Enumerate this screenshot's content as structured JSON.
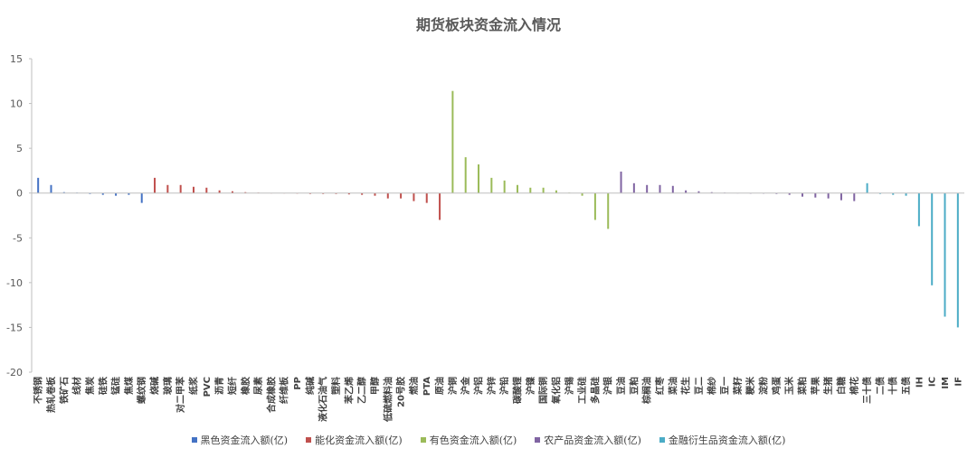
{
  "chart_data": {
    "type": "bar",
    "title": "期货板块资金流入情况",
    "ylim": [
      -20,
      15
    ],
    "yticks": [
      15,
      10,
      5,
      0,
      -5,
      -10,
      -15,
      -20
    ],
    "legend_position": "bottom",
    "series": [
      {
        "name": "黑色资金流入额(亿)",
        "color": "#4472C4",
        "categories": [
          "不锈钢",
          "热轧卷板",
          "铁矿石",
          "线材",
          "焦炭",
          "硅铁",
          "锰硅",
          "焦煤",
          "螺纹钢"
        ],
        "values": [
          1.7,
          0.9,
          0.1,
          0.05,
          -0.1,
          -0.2,
          -0.3,
          -0.2,
          -1.1
        ]
      },
      {
        "name": "能化资金流入额(亿)",
        "color": "#C0504D",
        "categories": [
          "烧碱",
          "玻璃",
          "对二甲苯",
          "纸浆",
          "PVC",
          "沥青",
          "短纤",
          "橡胶",
          "尿素",
          "合成橡胶",
          "纤维板",
          "PP",
          "纯碱",
          "液化石油气",
          "塑料",
          "苯乙烯",
          "乙二醇",
          "甲醇",
          "低硫燃料油",
          "20号胶",
          "燃油",
          "PTA",
          "原油"
        ],
        "values": [
          1.7,
          0.9,
          0.9,
          0.7,
          0.6,
          0.3,
          0.2,
          0.1,
          0.05,
          0.02,
          0.02,
          -0.05,
          -0.1,
          -0.1,
          -0.1,
          -0.15,
          -0.2,
          -0.3,
          -0.6,
          -0.6,
          -0.9,
          -1.1,
          -3.0
        ]
      },
      {
        "name": "有色资金流入额(亿)",
        "color": "#9BBB59",
        "categories": [
          "沪铜",
          "沪金",
          "沪铝",
          "沪锌",
          "沪铅",
          "碳酸锂",
          "沪镍",
          "国际铜",
          "氧化铝",
          "沪锡",
          "工业硅",
          "多晶硅",
          "沪银"
        ],
        "values": [
          11.4,
          4.0,
          3.2,
          1.7,
          1.4,
          0.9,
          0.6,
          0.6,
          0.3,
          0.05,
          -0.3,
          -3.0,
          -4.0
        ]
      },
      {
        "name": "农产品资金流入额(亿)",
        "color": "#8064A2",
        "categories": [
          "豆油",
          "豆粕",
          "棕榈油",
          "红枣",
          "菜油",
          "花生",
          "豆二",
          "棉纱",
          "豆一",
          "菜籽",
          "粳米",
          "淀粉",
          "鸡蛋",
          "玉米",
          "菜粕",
          "苹果",
          "生猪",
          "白糖",
          "棉花"
        ],
        "values": [
          2.4,
          1.1,
          0.9,
          0.9,
          0.8,
          0.3,
          0.2,
          0.1,
          0.05,
          0.02,
          -0.05,
          -0.05,
          -0.1,
          -0.2,
          -0.4,
          -0.5,
          -0.6,
          -0.8,
          -0.9
        ]
      },
      {
        "name": "金融衍生品资金流入额(亿)",
        "color": "#4BACC6",
        "categories": [
          "三十债",
          "二债",
          "十债",
          "五债",
          "IH",
          "IC",
          "IM",
          "IF"
        ],
        "values": [
          1.1,
          -0.1,
          -0.2,
          -0.3,
          -3.7,
          -10.3,
          -13.8,
          -15.0
        ]
      }
    ]
  }
}
